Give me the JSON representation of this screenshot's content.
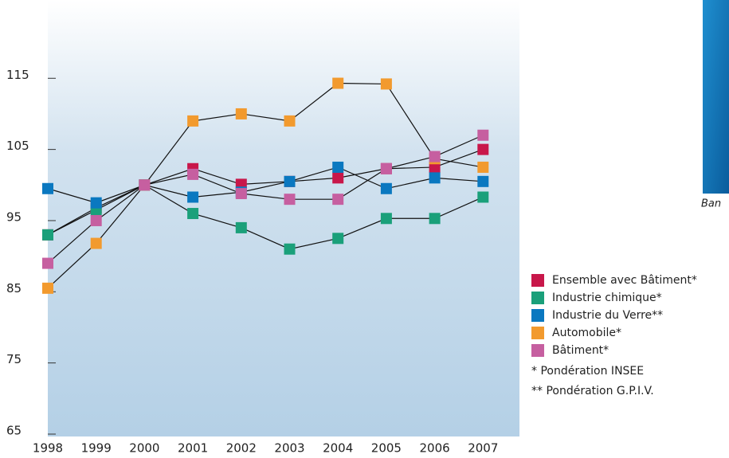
{
  "chart_data": {
    "type": "line",
    "categories": [
      "1998",
      "1999",
      "2000",
      "2001",
      "2002",
      "2003",
      "2004",
      "2005",
      "2006",
      "2007"
    ],
    "series": [
      {
        "name": "Ensemble avec Bâtiment*",
        "color": "#c8174a",
        "values": [
          93,
          96.8,
          100,
          102.3,
          100.1,
          100.5,
          101,
          102.3,
          102.5,
          105
        ]
      },
      {
        "name": "Industrie chimique*",
        "color": "#1aa07a",
        "values": [
          93,
          96.5,
          100,
          96,
          94,
          91,
          92.5,
          95.3,
          95.3,
          98.3
        ]
      },
      {
        "name": "Industrie du Verre**",
        "color": "#0a78c0",
        "values": [
          99.5,
          97.5,
          100,
          98.3,
          99,
          100.5,
          102.5,
          99.5,
          101,
          100.5
        ]
      },
      {
        "name": "Automobile*",
        "color": "#f29a2e",
        "values": [
          85.5,
          91.8,
          100,
          109,
          110,
          109,
          114.3,
          114.2,
          103.7,
          102.5
        ]
      },
      {
        "name": "Bâtiment*",
        "color": "#c65fa0",
        "values": [
          89,
          95,
          100,
          101.5,
          98.8,
          98,
          98,
          102.3,
          104,
          107
        ]
      }
    ],
    "ylim": [
      65,
      126
    ],
    "yticks": [
      65,
      75,
      85,
      95,
      105,
      115
    ],
    "notes": [
      "*   Pondération INSEE",
      "** Pondération G.P.I.V."
    ],
    "side_caption": "Ban"
  }
}
